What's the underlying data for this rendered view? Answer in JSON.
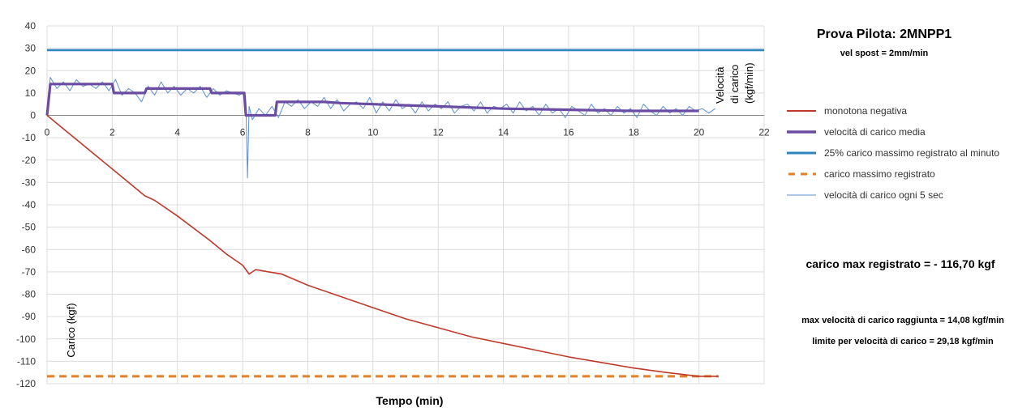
{
  "chart_data": {
    "type": "line",
    "title": "Prova Pilota: 2MNPP1",
    "subtitle": "vel spost = 2mm/min",
    "xlabel": "Tempo (min)",
    "ylabel_left": "Carico (kgf)",
    "ylabel_right": "Velocità di carico (kgf/min)",
    "xlim": [
      0,
      22
    ],
    "ylim": [
      -120,
      40
    ],
    "xticks": [
      0,
      2,
      4,
      6,
      8,
      10,
      12,
      14,
      16,
      18,
      20,
      22
    ],
    "yticks": [
      40,
      30,
      20,
      10,
      0,
      -10,
      -20,
      -30,
      -40,
      -50,
      -60,
      -70,
      -80,
      -90,
      -100,
      -110,
      -120
    ],
    "grid": true,
    "legend_position": "right",
    "series": [
      {
        "name": "monotona negativa",
        "color": "#c0392b",
        "style": "solid",
        "x": [
          0,
          0.5,
          1,
          1.5,
          2,
          2.5,
          3,
          3.3,
          4,
          5,
          5.5,
          6,
          6.2,
          6.4,
          6.8,
          7.2,
          8,
          9,
          10,
          11,
          12,
          13,
          14,
          15,
          16,
          17,
          18,
          19,
          20,
          20.6
        ],
        "y": [
          0,
          -6,
          -12,
          -18,
          -24,
          -30,
          -36,
          -38,
          -45,
          -56,
          -62,
          -67,
          -71,
          -69,
          -70,
          -71,
          -76,
          -81,
          -86,
          -91,
          -95,
          -99,
          -102,
          -105,
          -108,
          -110.5,
          -113,
          -115,
          -116.7,
          -116.7
        ]
      },
      {
        "name": "velocità di carico media",
        "color": "#6a4ca3",
        "style": "solid-thick",
        "x": [
          0,
          0.1,
          2,
          2.05,
          3,
          3.05,
          5,
          5.05,
          6,
          6.05,
          6.1,
          7,
          7.05,
          8.5,
          9,
          10,
          11,
          12,
          14,
          16,
          18,
          20
        ],
        "y": [
          0,
          14,
          14,
          10,
          10,
          12,
          12,
          10,
          10,
          10,
          0,
          0,
          6,
          6,
          5.5,
          5,
          4.5,
          4,
          3,
          2.5,
          2,
          2
        ]
      },
      {
        "name": "25% carico massimo registrato al minuto",
        "color": "#2e86c1",
        "style": "solid",
        "x": [
          0,
          22
        ],
        "y": [
          29.18,
          29.18
        ]
      },
      {
        "name": "carico massimo registrato",
        "color": "#e67e22",
        "style": "dashed",
        "x": [
          0,
          20.6
        ],
        "y": [
          -116.7,
          -116.7
        ]
      },
      {
        "name": "velocità di carico ogni 5 sec",
        "color": "#5d8fd1",
        "style": "thin",
        "x": [
          0,
          0.1,
          0.3,
          0.5,
          0.7,
          0.9,
          1.1,
          1.3,
          1.5,
          1.7,
          1.9,
          2.1,
          2.3,
          2.5,
          2.7,
          2.9,
          3.1,
          3.3,
          3.5,
          3.7,
          3.9,
          4.1,
          4.3,
          4.5,
          4.7,
          4.9,
          5.1,
          5.3,
          5.5,
          5.7,
          5.9,
          6.0,
          6.1,
          6.15,
          6.2,
          6.3,
          6.5,
          6.7,
          6.9,
          7.1,
          7.3,
          7.5,
          7.7,
          7.9,
          8.1,
          8.3,
          8.5,
          8.7,
          8.9,
          9.1,
          9.3,
          9.5,
          9.7,
          9.9,
          10.1,
          10.3,
          10.5,
          10.7,
          10.9,
          11.1,
          11.3,
          11.5,
          11.7,
          11.9,
          12.1,
          12.3,
          12.5,
          12.7,
          12.9,
          13.1,
          13.3,
          13.5,
          13.7,
          13.9,
          14.1,
          14.3,
          14.5,
          14.7,
          14.9,
          15.1,
          15.3,
          15.5,
          15.7,
          15.9,
          16.1,
          16.3,
          16.5,
          16.7,
          16.9,
          17.1,
          17.3,
          17.5,
          17.7,
          17.9,
          18.1,
          18.3,
          18.5,
          18.7,
          18.9,
          19.1,
          19.3,
          19.5,
          19.7,
          19.9,
          20.1,
          20.3,
          20.5
        ],
        "y": [
          0,
          17,
          12,
          15,
          11,
          16,
          13,
          14,
          12,
          15,
          11,
          16,
          9,
          12,
          10,
          6,
          13,
          9,
          15,
          10,
          13,
          9,
          12,
          10,
          13,
          8,
          12,
          9,
          11,
          10,
          9,
          10,
          6,
          -28,
          4,
          -2,
          3,
          0,
          4,
          -1,
          6,
          4,
          7,
          3,
          6,
          4,
          8,
          3,
          7,
          2,
          5,
          6,
          3,
          8,
          1,
          6,
          2,
          7,
          3,
          5,
          1,
          6,
          2,
          5,
          3,
          6,
          1,
          4,
          5,
          2,
          6,
          1,
          4,
          3,
          5,
          1,
          6,
          2,
          4,
          0,
          5,
          1,
          3,
          -1,
          4,
          2,
          0,
          5,
          1,
          3,
          0,
          4,
          1,
          3,
          -1,
          5,
          2,
          0,
          4,
          1,
          3,
          0,
          4,
          2,
          3,
          1,
          3
        ]
      }
    ],
    "annotations": {
      "carico_max": "carico max registrato = - 116,70 kgf",
      "max_vel": "max velocità di carico raggiunta = 14,08 kgf/min",
      "limite_vel": "limite per velocità di carico = 29,18 kgf/min"
    }
  },
  "legend": [
    {
      "label": "monotona negativa",
      "color": "#c0392b",
      "style": "solid"
    },
    {
      "label": "velocità di carico media",
      "color": "#6a4ca3",
      "style": "thick"
    },
    {
      "label": "25% carico massimo registrato al minuto",
      "color": "#2e86c1",
      "style": "solid"
    },
    {
      "label": "carico massimo registrato",
      "color": "#e67e22",
      "style": "dashed"
    },
    {
      "label": "velocità di carico ogni 5 sec",
      "color": "#5d8fd1",
      "style": "thin"
    }
  ],
  "right_axis_label_line1": "Velocità",
  "right_axis_label_line2": "di carico",
  "right_axis_label_line3": "(kgf/min)"
}
